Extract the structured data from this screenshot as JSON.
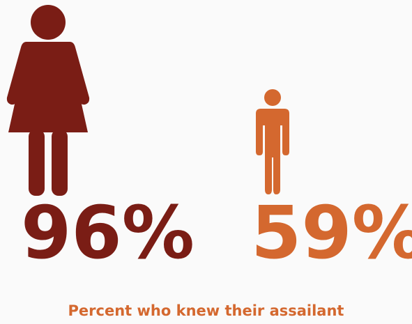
{
  "chart_data": {
    "type": "pictograph",
    "caption": "Percent who knew their assailant",
    "items": [
      {
        "icon": "woman-figure-icon",
        "value": 96,
        "label": "96%",
        "color": "#7a1d15"
      },
      {
        "icon": "man-figure-icon",
        "value": 59,
        "label": "59%",
        "color": "#d4682f"
      }
    ],
    "colors": {
      "caption": "#d4682f",
      "background": "#fafafa"
    }
  }
}
